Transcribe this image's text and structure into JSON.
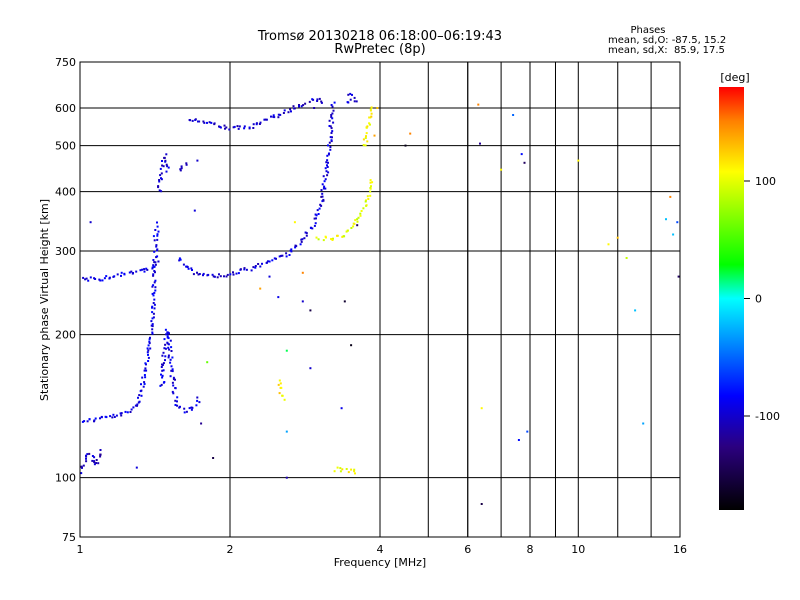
{
  "chart_data": {
    "type": "scatter",
    "title": "Tromsø 20130218 06:18:00–06:19:43",
    "subtitle": "RwPretec (8p)",
    "xlabel": "Frequency [MHz]",
    "ylabel": "Stationary phase Virtual Height [km]",
    "x_scale": "log",
    "y_scale": "log",
    "xlim": [
      1,
      16
    ],
    "ylim": [
      75,
      750
    ],
    "x_ticks": [
      1,
      2,
      4,
      6,
      8,
      10,
      16
    ],
    "x_tick_labels": [
      "1",
      "2",
      "4",
      "6",
      "8",
      "10",
      "16"
    ],
    "y_ticks": [
      75,
      100,
      200,
      300,
      400,
      500,
      600,
      750
    ],
    "y_tick_labels": [
      "75",
      "100",
      "200",
      "300",
      "400",
      "500",
      "600",
      "750"
    ],
    "grid": true,
    "stats": {
      "heading": "Phases",
      "line_o": "mean, sd,O: -87.5, 15.2",
      "line_x": "mean, sd,X:  85.9, 17.5"
    },
    "colorbar": {
      "label": "[deg]",
      "range": [
        -180,
        180
      ],
      "ticks": [
        100,
        0,
        -100
      ],
      "tick_labels": [
        "100",
        "0",
        "-100"
      ]
    },
    "color_scale": [
      [
        0.0,
        "#000000"
      ],
      [
        0.15,
        "#2b0080"
      ],
      [
        0.27,
        "#0000ff"
      ],
      [
        0.5,
        "#00ffff"
      ],
      [
        0.58,
        "#00ff00"
      ],
      [
        0.8,
        "#ffff00"
      ],
      [
        0.92,
        "#ff8000"
      ],
      [
        1.0,
        "#ff0000"
      ]
    ],
    "series": [
      {
        "id": "o_low_trace",
        "phase": -92,
        "type": "line",
        "pts": [
          [
            1.0,
            132
          ],
          [
            1.05,
            132
          ],
          [
            1.12,
            134
          ],
          [
            1.2,
            135
          ],
          [
            1.26,
            138
          ],
          [
            1.3,
            143
          ],
          [
            1.33,
            152
          ],
          [
            1.35,
            165
          ],
          [
            1.37,
            180
          ],
          [
            1.39,
            200
          ],
          [
            1.4,
            230
          ],
          [
            1.41,
            270
          ],
          [
            1.42,
            320
          ],
          [
            1.43,
            345
          ]
        ]
      },
      {
        "id": "o_low_right",
        "phase": -92,
        "type": "line",
        "pts": [
          [
            1.46,
            155
          ],
          [
            1.48,
            185
          ],
          [
            1.5,
            205
          ],
          [
            1.52,
            180
          ],
          [
            1.54,
            158
          ],
          [
            1.56,
            143
          ],
          [
            1.62,
            138
          ],
          [
            1.68,
            140
          ],
          [
            1.72,
            145
          ],
          [
            1.74,
            148
          ]
        ]
      },
      {
        "id": "f_trace_low",
        "phase": -95,
        "type": "line",
        "pts": [
          [
            1.0,
            262
          ],
          [
            1.1,
            262
          ],
          [
            1.15,
            265
          ],
          [
            1.2,
            268
          ],
          [
            1.3,
            270
          ],
          [
            1.4,
            278
          ],
          [
            1.45,
            288
          ]
        ]
      },
      {
        "id": "f_trace_main",
        "phase": -95,
        "type": "line",
        "pts": [
          [
            1.58,
            290
          ],
          [
            1.62,
            280
          ],
          [
            1.7,
            270
          ],
          [
            1.85,
            265
          ],
          [
            2.0,
            268
          ],
          [
            2.2,
            275
          ],
          [
            2.4,
            285
          ],
          [
            2.6,
            295
          ],
          [
            2.8,
            315
          ],
          [
            2.95,
            345
          ],
          [
            3.05,
            380
          ],
          [
            3.1,
            420
          ],
          [
            3.15,
            470
          ],
          [
            3.18,
            520
          ],
          [
            3.2,
            570
          ],
          [
            3.22,
            620
          ]
        ]
      },
      {
        "id": "f_trace_xupper",
        "phase": -100,
        "type": "line",
        "pts": [
          [
            1.65,
            570
          ],
          [
            1.8,
            560
          ],
          [
            2.0,
            545
          ],
          [
            2.2,
            545
          ],
          [
            2.4,
            570
          ],
          [
            2.6,
            590
          ],
          [
            2.8,
            610
          ],
          [
            3.0,
            625
          ],
          [
            3.1,
            610
          ]
        ]
      },
      {
        "id": "x_trace",
        "phase": 100,
        "type": "line",
        "pts": [
          [
            3.0,
            320
          ],
          [
            3.2,
            318
          ],
          [
            3.4,
            325
          ],
          [
            3.55,
            340
          ],
          [
            3.7,
            365
          ],
          [
            3.8,
            395
          ],
          [
            3.85,
            430
          ]
        ]
      },
      {
        "id": "x_trace_top",
        "phase": 110,
        "type": "line",
        "pts": [
          [
            3.72,
            500
          ],
          [
            3.78,
            540
          ],
          [
            3.82,
            580
          ],
          [
            3.85,
            610
          ]
        ]
      },
      {
        "id": "hi_blue_cluster",
        "phase": -98,
        "type": "line",
        "pts": [
          [
            3.45,
            615
          ],
          [
            3.5,
            640
          ],
          [
            3.55,
            630
          ],
          [
            3.6,
            615
          ]
        ]
      },
      {
        "id": "low_blue_cluster",
        "phase": -105,
        "type": "line",
        "pts": [
          [
            1.0,
            102
          ],
          [
            1.02,
            108
          ],
          [
            1.04,
            112
          ],
          [
            1.06,
            110
          ],
          [
            1.08,
            106
          ],
          [
            1.1,
            115
          ]
        ]
      },
      {
        "id": "x_band_low",
        "phase": 105,
        "type": "line",
        "pts": [
          [
            3.25,
            104
          ],
          [
            3.35,
            104
          ],
          [
            3.45,
            103
          ],
          [
            3.55,
            103
          ],
          [
            3.6,
            104
          ]
        ]
      },
      {
        "id": "yellow_sporadic",
        "phase": 115,
        "type": "line",
        "pts": [
          [
            2.5,
            160
          ],
          [
            2.52,
            155
          ],
          [
            2.54,
            150
          ],
          [
            2.56,
            145
          ]
        ]
      },
      {
        "id": "spike_1p45",
        "phase": -100,
        "type": "line",
        "pts": [
          [
            1.44,
            400
          ],
          [
            1.46,
            440
          ],
          [
            1.48,
            475
          ],
          [
            1.5,
            440
          ]
        ]
      },
      {
        "id": "spike_1p6",
        "phase": -100,
        "type": "line",
        "pts": [
          [
            1.58,
            440
          ],
          [
            1.6,
            450
          ],
          [
            1.62,
            460
          ],
          [
            1.64,
            455
          ]
        ]
      },
      {
        "id": "sparse",
        "phase": 0,
        "type": "scatter",
        "pts": [
          [
            1.05,
            345,
            -100
          ],
          [
            1.3,
            105,
            -95
          ],
          [
            1.7,
            365,
            -95
          ],
          [
            1.72,
            465,
            -100
          ],
          [
            1.75,
            130,
            -120
          ],
          [
            1.85,
            110,
            -150
          ],
          [
            1.8,
            175,
            60
          ],
          [
            2.3,
            250,
            140
          ],
          [
            2.4,
            265,
            -95
          ],
          [
            2.5,
            240,
            -90
          ],
          [
            2.6,
            100,
            -110
          ],
          [
            2.6,
            185,
            20
          ],
          [
            2.6,
            125,
            -30
          ],
          [
            2.7,
            345,
            110
          ],
          [
            2.8,
            235,
            -100
          ],
          [
            2.8,
            270,
            150
          ],
          [
            2.9,
            170,
            -100
          ],
          [
            2.9,
            225,
            -150
          ],
          [
            2.95,
            600,
            -110
          ],
          [
            3.05,
            390,
            -120
          ],
          [
            3.35,
            140,
            -90
          ],
          [
            3.4,
            235,
            -160
          ],
          [
            3.5,
            190,
            -170
          ],
          [
            3.6,
            340,
            -140
          ],
          [
            3.9,
            525,
            140
          ],
          [
            3.95,
            600,
            130
          ],
          [
            4.5,
            500,
            -170
          ],
          [
            4.6,
            530,
            150
          ],
          [
            6.3,
            610,
            150
          ],
          [
            6.35,
            505,
            -120
          ],
          [
            6.4,
            140,
            110
          ],
          [
            6.4,
            88,
            -150
          ],
          [
            7.0,
            445,
            110
          ],
          [
            7.4,
            580,
            -50
          ],
          [
            7.6,
            120,
            -80
          ],
          [
            7.7,
            480,
            -80
          ],
          [
            7.8,
            460,
            -140
          ],
          [
            7.9,
            125,
            -60
          ],
          [
            10.0,
            465,
            110
          ],
          [
            11.5,
            310,
            110
          ],
          [
            12.0,
            320,
            130
          ],
          [
            12.5,
            290,
            90
          ],
          [
            13.0,
            225,
            -20
          ],
          [
            13.5,
            130,
            -30
          ],
          [
            15.0,
            350,
            -20
          ],
          [
            15.3,
            390,
            150
          ],
          [
            15.5,
            325,
            -20
          ],
          [
            15.8,
            345,
            -60
          ],
          [
            15.9,
            265,
            -140
          ]
        ]
      }
    ]
  }
}
